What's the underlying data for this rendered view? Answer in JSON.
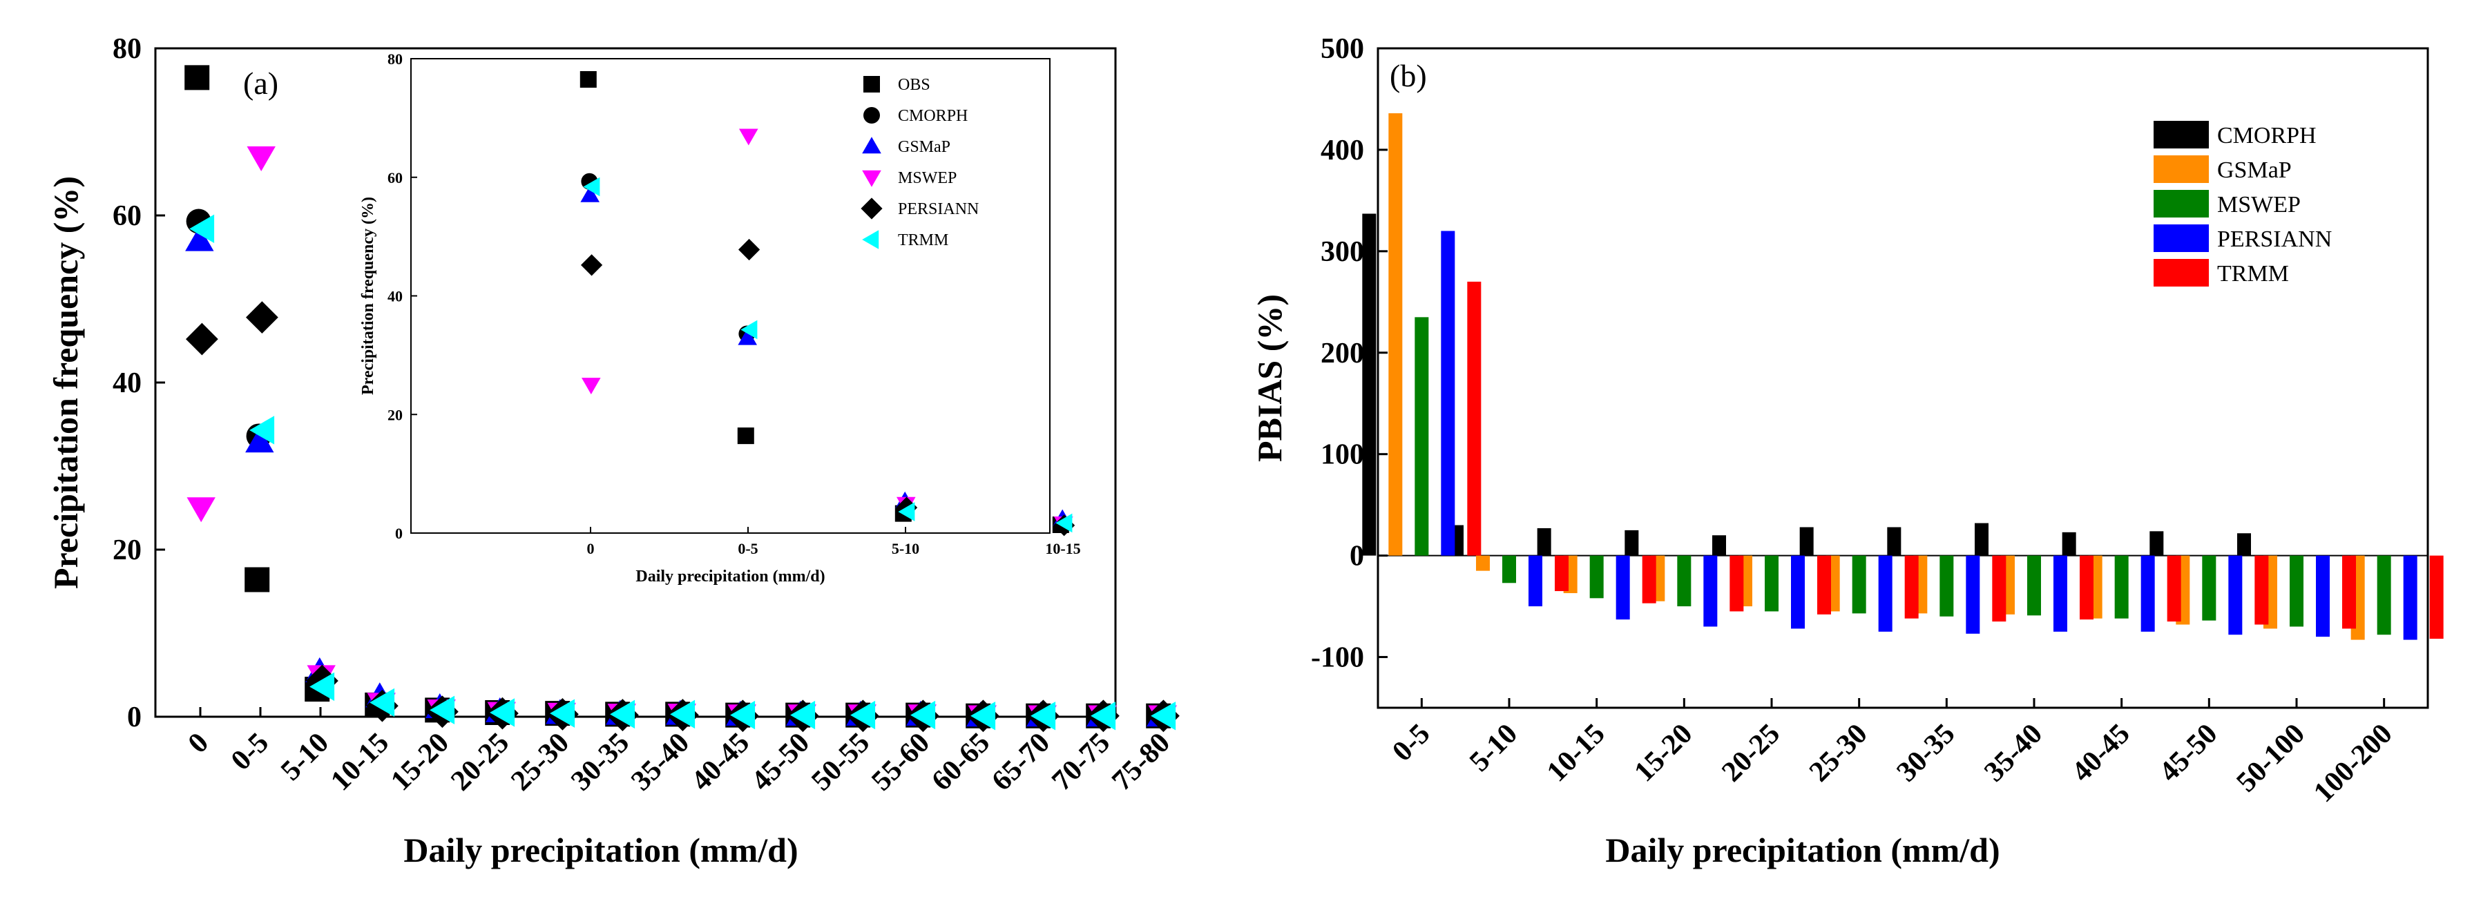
{
  "chart_data": [
    {
      "id": "a",
      "type": "scatter",
      "panel_label": "(a)",
      "xlabel": "Daily precipitation (mm/d)",
      "ylabel": "Precipitation frequency (%)",
      "ylim": [
        0,
        80
      ],
      "yticks": [
        "0",
        "20",
        "40",
        "60",
        "80"
      ],
      "categories": [
        "0",
        "0-5",
        "5-10",
        "10-15",
        "15-20",
        "20-25",
        "25-30",
        "30-35",
        "35-40",
        "40-45",
        "45-50",
        "50-55",
        "55-60",
        "60-65",
        "65-70",
        "70-75",
        "75-80"
      ],
      "legend_position": "inset top-right",
      "series": [
        {
          "name": "OBS",
          "marker": "square",
          "color": "#000000",
          "values": [
            76.5,
            16.4,
            3.3,
            1.4,
            0.8,
            0.5,
            0.4,
            0.3,
            0.3,
            0.2,
            0.2,
            0.2,
            0.2,
            0.1,
            0.1,
            0.1,
            0.1
          ]
        },
        {
          "name": "CMORPH",
          "marker": "circle",
          "color": "#000000",
          "values": [
            59.3,
            33.6,
            3.8,
            1.5,
            0.8,
            0.5,
            0.4,
            0.3,
            0.3,
            0.2,
            0.2,
            0.2,
            0.2,
            0.1,
            0.1,
            0.1,
            0.1
          ]
        },
        {
          "name": "GSMaP",
          "marker": "triangle-up",
          "color": "#0000ff",
          "values": [
            57.0,
            32.9,
            5.4,
            2.4,
            1.1,
            0.6,
            0.4,
            0.3,
            0.3,
            0.2,
            0.2,
            0.2,
            0.2,
            0.1,
            0.1,
            0.1,
            0.1
          ]
        },
        {
          "name": "MSWEP",
          "marker": "triangle-down",
          "color": "#ff00ff",
          "values": [
            25.0,
            67.0,
            4.9,
            1.6,
            0.8,
            0.5,
            0.4,
            0.3,
            0.3,
            0.2,
            0.2,
            0.2,
            0.2,
            0.1,
            0.1,
            0.1,
            0.1
          ]
        },
        {
          "name": "PERSIANN",
          "marker": "diamond",
          "color": "#000000",
          "values": [
            45.2,
            47.8,
            4.3,
            1.3,
            0.6,
            0.4,
            0.3,
            0.2,
            0.2,
            0.1,
            0.1,
            0.1,
            0.1,
            0.1,
            0.1,
            0.1,
            0.1
          ]
        },
        {
          "name": "TRMM",
          "marker": "triangle-left",
          "color": "#00ffff",
          "values": [
            58.4,
            34.3,
            3.6,
            1.7,
            0.8,
            0.5,
            0.4,
            0.3,
            0.3,
            0.2,
            0.2,
            0.2,
            0.2,
            0.1,
            0.1,
            0.1,
            0.1
          ]
        }
      ],
      "inset": {
        "xlabel": "Daily precipitation (mm/d)",
        "ylabel": "Precipitation frequency (%)",
        "ylim": [
          0,
          80
        ],
        "yticks": [
          "0",
          "20",
          "40",
          "60",
          "80"
        ],
        "categories": [
          "0",
          "0-5",
          "5-10",
          "10-15"
        ],
        "series_values": {
          "OBS": [
            76.5,
            16.4,
            3.3,
            1.4
          ],
          "CMORPH": [
            59.3,
            33.6,
            3.8,
            1.5
          ],
          "GSMaP": [
            57.0,
            32.9,
            5.4,
            2.4
          ],
          "MSWEP": [
            25.0,
            67.0,
            4.9,
            1.6
          ],
          "PERSIANN": [
            45.2,
            47.8,
            4.3,
            1.3
          ],
          "TRMM": [
            58.4,
            34.3,
            3.6,
            1.7
          ]
        }
      }
    },
    {
      "id": "b",
      "type": "bar",
      "panel_label": "(b)",
      "xlabel": "Daily precipitation (mm/d)",
      "ylabel": "PBIAS (%)",
      "ylim": [
        -150,
        500
      ],
      "yticks": [
        "-100",
        "0",
        "100",
        "200",
        "300",
        "400",
        "500"
      ],
      "categories": [
        "0-5",
        "5-10",
        "10-15",
        "15-20",
        "20-25",
        "25-30",
        "30-35",
        "35-40",
        "40-45",
        "45-50",
        "50-100",
        "100-200"
      ],
      "legend_position": "top-right",
      "series": [
        {
          "name": "CMORPH",
          "color": "#000000",
          "values": [
            337,
            30,
            27,
            25,
            20,
            28,
            28,
            32,
            23,
            24,
            22,
            0
          ]
        },
        {
          "name": "GSMaP",
          "color": "#ff8c00",
          "values": [
            436,
            -15,
            -37,
            -45,
            -50,
            -55,
            -57,
            -58,
            -62,
            -68,
            -72,
            -83
          ]
        },
        {
          "name": "MSWEP",
          "color": "#008000",
          "values": [
            235,
            -27,
            -42,
            -50,
            -55,
            -57,
            -60,
            -59,
            -62,
            -64,
            -70,
            -78
          ]
        },
        {
          "name": "PERSIANN",
          "color": "#0000ff",
          "values": [
            320,
            -50,
            -63,
            -70,
            -72,
            -75,
            -77,
            -75,
            -75,
            -78,
            -80,
            -83
          ]
        },
        {
          "name": "TRMM",
          "color": "#ff0000",
          "values": [
            270,
            -35,
            -47,
            -55,
            -58,
            -62,
            -65,
            -63,
            -65,
            -68,
            -72,
            -82
          ]
        }
      ]
    }
  ]
}
